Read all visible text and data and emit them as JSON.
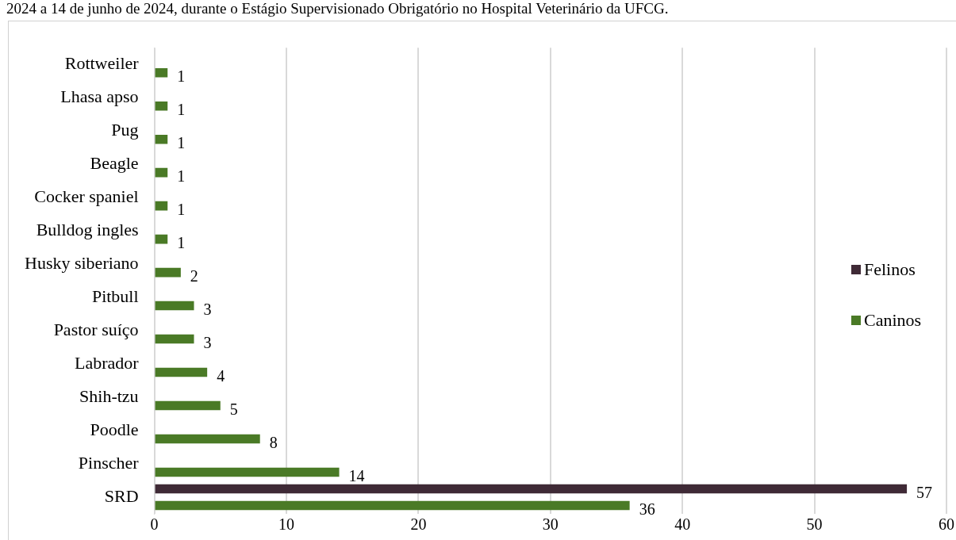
{
  "chart_data": {
    "type": "bar",
    "orientation": "horizontal",
    "annotations": [
      "2024 a 14 de junho de 2024, durante o Estágio Supervisionado Obrigatório no Hospital Veterinário da UFCG."
    ],
    "categories": [
      "Rottweiler",
      "Lhasa apso",
      "Pug",
      "Beagle",
      "Cocker spaniel",
      "Bulldog ingles",
      "Husky siberiano",
      "Pitbull",
      "Pastor suíço",
      "Labrador",
      "Shih-tzu",
      "Poodle",
      "Pinscher",
      "SRD"
    ],
    "series": [
      {
        "name": "Felinos",
        "color": "#3f2a36",
        "values": [
          null,
          null,
          null,
          null,
          null,
          null,
          null,
          null,
          null,
          null,
          null,
          null,
          null,
          57
        ]
      },
      {
        "name": "Caninos",
        "color": "#4a7a26",
        "values": [
          1,
          1,
          1,
          1,
          1,
          1,
          2,
          3,
          3,
          4,
          5,
          8,
          14,
          36
        ]
      }
    ],
    "xlim": [
      0,
      60
    ],
    "xticks": [
      0,
      10,
      20,
      30,
      40,
      50,
      60
    ],
    "grid": "x",
    "legend": "right",
    "data_labels": true
  }
}
